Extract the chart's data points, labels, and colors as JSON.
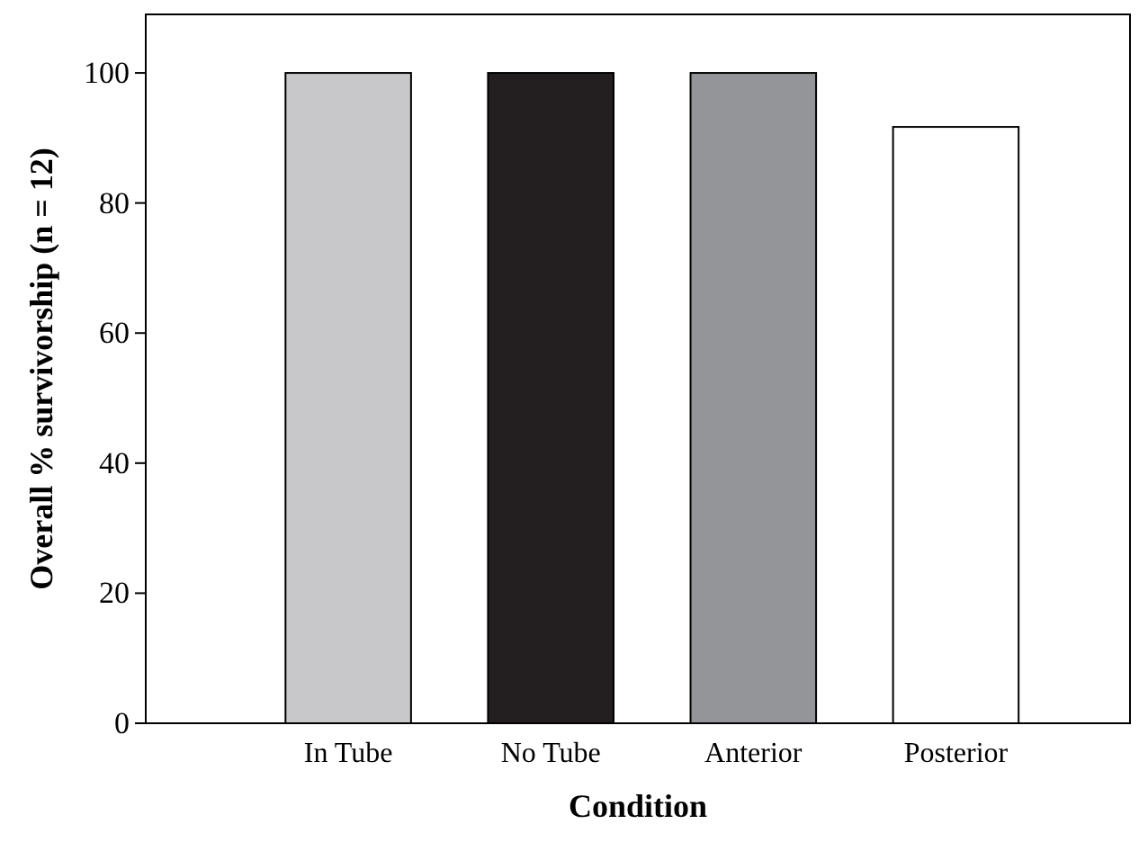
{
  "chart_data": {
    "type": "bar",
    "xlabel": "Condition",
    "ylabel": "Overall % survivorship (n = 12)",
    "categories": [
      "In Tube",
      "No Tube",
      "Anterior",
      "Posterior"
    ],
    "values": [
      100,
      100,
      100,
      91.7
    ],
    "colors": [
      "#c8c8ca",
      "#231f20",
      "#939598",
      "#ffffff"
    ],
    "ylim": [
      0,
      109
    ],
    "yticks": [
      0,
      20,
      40,
      60,
      80,
      100
    ],
    "grid": false
  }
}
